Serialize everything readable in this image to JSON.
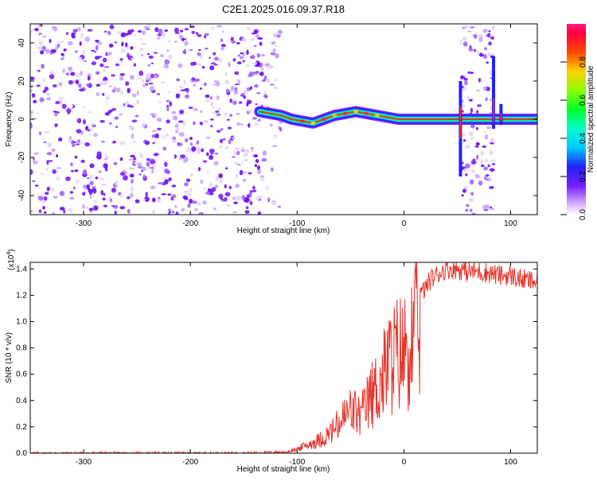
{
  "title": "C2E1.2025.016.09.37.R18",
  "chart_data": [
    {
      "type": "heatmap",
      "xlabel": "Height of straight line (km)",
      "ylabel": "Frequency (Hz)",
      "xlim": [
        -350,
        125
      ],
      "ylim": [
        -50,
        50
      ],
      "xticks": [
        -300,
        -200,
        -100,
        0,
        100
      ],
      "yticks": [
        -40,
        -20,
        0,
        20,
        40
      ],
      "colorbar": {
        "label": "Normalized spectral amplitude",
        "range": [
          0,
          1
        ],
        "ticks": [
          "0.0",
          "0.2",
          "0.4",
          "0.6",
          "0.8"
        ]
      },
      "ridge_km": [
        -135,
        -125,
        -115,
        -105,
        -95,
        -85,
        -75,
        -65,
        -55,
        -45,
        -35,
        -25,
        -15,
        -5,
        5,
        15,
        25,
        35,
        45,
        55,
        65,
        75,
        85,
        95,
        105,
        115,
        125
      ],
      "ridge_hz": [
        4,
        3,
        2,
        0,
        -1,
        -2,
        0,
        2,
        3,
        4,
        3,
        2,
        1,
        0,
        0,
        0,
        0,
        0,
        0,
        0,
        0,
        0,
        0,
        0,
        0,
        0,
        0
      ]
    },
    {
      "type": "line",
      "xlabel": "Height of straight line (km)",
      "ylabel": "SNR (10 * v/v)",
      "yscale_label": "(x10",
      "yscale_exp": "4",
      "yscale_close": ")",
      "xlim": [
        -350,
        125
      ],
      "ylim": [
        0,
        1.45
      ],
      "xticks": [
        -300,
        -200,
        -100,
        0,
        100
      ],
      "yticks": [
        "0.0",
        "0.2",
        "0.4",
        "0.6",
        "0.8",
        "1.0",
        "1.2",
        "1.4"
      ],
      "color": "#e8332a",
      "series": [
        {
          "x": [
            -350,
            -300,
            -250,
            -200,
            -150,
            -110,
            -100,
            -90,
            -80,
            -70,
            -60,
            -55,
            -50,
            -45,
            -40,
            -35,
            -30,
            -25,
            -20,
            -15,
            -10,
            -5,
            0,
            5,
            10,
            15,
            20,
            25,
            30,
            35,
            40,
            50,
            60,
            70,
            80,
            90,
            100,
            110,
            125
          ],
          "y": [
            0.0,
            0.0,
            0.0,
            0.0,
            0.0,
            0.01,
            0.04,
            0.08,
            0.12,
            0.18,
            0.28,
            0.35,
            0.4,
            0.38,
            0.35,
            0.45,
            0.55,
            0.62,
            0.7,
            0.85,
            0.9,
            0.95,
            0.95,
            1.05,
            1.1,
            1.2,
            1.25,
            1.32,
            1.35,
            1.38,
            1.4,
            1.4,
            1.38,
            1.38,
            1.37,
            1.35,
            1.35,
            1.32,
            1.3
          ]
        }
      ]
    }
  ]
}
